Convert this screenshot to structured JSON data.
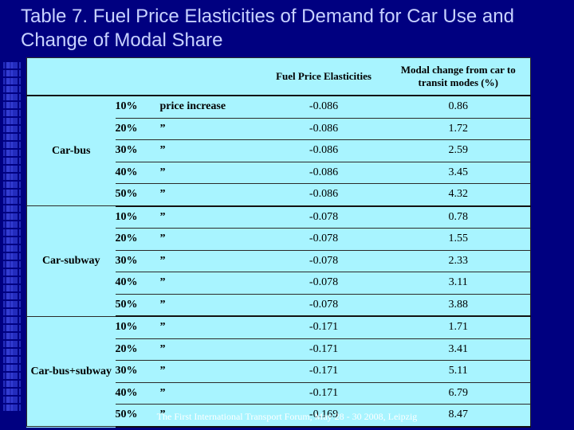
{
  "slide": {
    "title": "Table 7. Fuel Price Elasticities of Demand for Car Use and Change of Modal Share",
    "footer": "The First International Transport Forum, May 28 - 30  2008,  Leipzig"
  },
  "table": {
    "header": {
      "elasticity": "Fuel Price Elasticities",
      "modal": "Modal change from car to transit modes (%)"
    },
    "groups": [
      {
        "name": "Car-bus",
        "rows": [
          {
            "pct": "10%",
            "suffix": "price increase",
            "elasticity": "-0.086",
            "modal": "0.86"
          },
          {
            "pct": "20%",
            "suffix": "”",
            "elasticity": "-0.086",
            "modal": "1.72"
          },
          {
            "pct": "30%",
            "suffix": "”",
            "elasticity": "-0.086",
            "modal": "2.59"
          },
          {
            "pct": "40%",
            "suffix": "”",
            "elasticity": "-0.086",
            "modal": "3.45"
          },
          {
            "pct": "50%",
            "suffix": "”",
            "elasticity": "-0.086",
            "modal": "4.32"
          }
        ]
      },
      {
        "name": "Car-subway",
        "rows": [
          {
            "pct": "10%",
            "suffix": "”",
            "elasticity": "-0.078",
            "modal": "0.78"
          },
          {
            "pct": "20%",
            "suffix": "”",
            "elasticity": "-0.078",
            "modal": "1.55"
          },
          {
            "pct": "30%",
            "suffix": "”",
            "elasticity": "-0.078",
            "modal": "2.33"
          },
          {
            "pct": "40%",
            "suffix": "”",
            "elasticity": "-0.078",
            "modal": "3.11"
          },
          {
            "pct": "50%",
            "suffix": "”",
            "elasticity": "-0.078",
            "modal": "3.88"
          }
        ]
      },
      {
        "name": "Car-bus+subway",
        "rows": [
          {
            "pct": "10%",
            "suffix": "”",
            "elasticity": "-0.171",
            "modal": "1.71"
          },
          {
            "pct": "20%",
            "suffix": "”",
            "elasticity": "-0.171",
            "modal": "3.41"
          },
          {
            "pct": "30%",
            "suffix": "”",
            "elasticity": "-0.171",
            "modal": "5.11"
          },
          {
            "pct": "40%",
            "suffix": "”",
            "elasticity": "-0.171",
            "modal": "6.79"
          },
          {
            "pct": "50%",
            "suffix": "”",
            "elasticity": "-0.169",
            "modal": "8.47"
          }
        ]
      }
    ]
  },
  "colors": {
    "background": "#000080",
    "table_bg": "#a8f4ff",
    "title_text": "#c8d2ff",
    "footer_text": "#ffffff"
  }
}
